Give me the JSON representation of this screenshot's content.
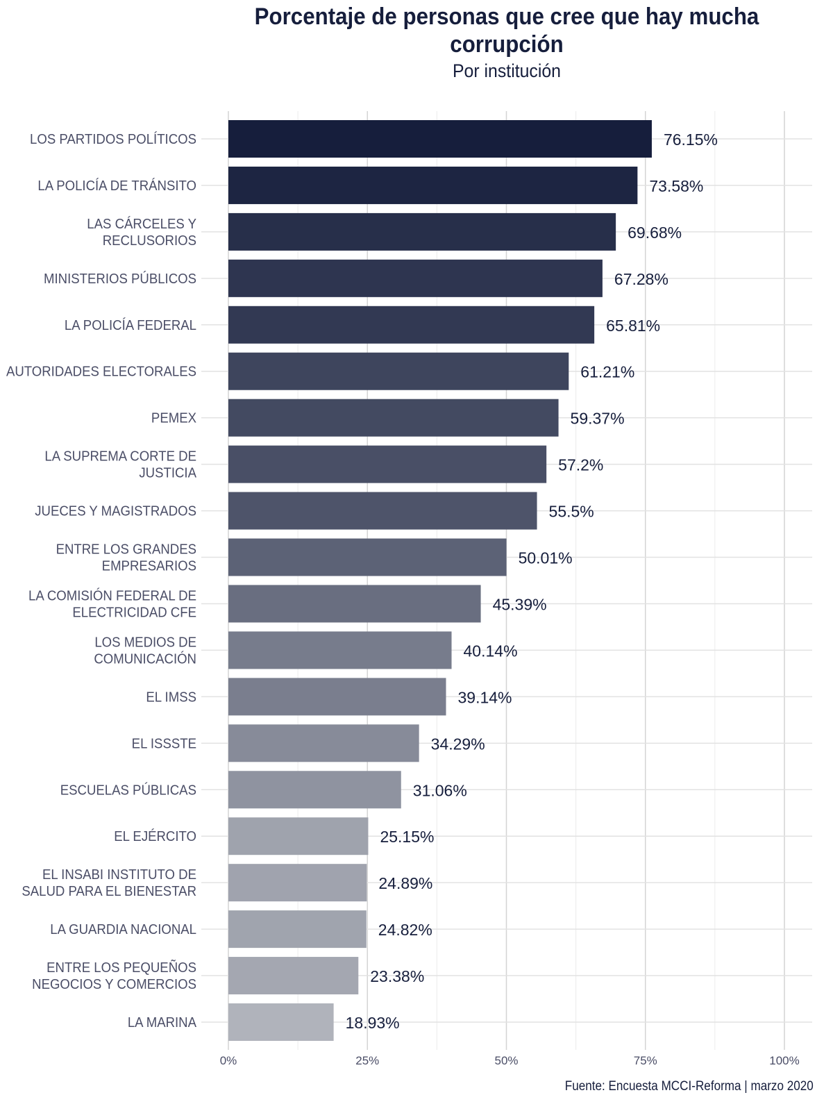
{
  "chart_data": {
    "type": "bar",
    "orientation": "horizontal",
    "title": "Porcentaje de personas que cree que hay mucha corrupción",
    "subtitle": "Por institución",
    "caption": "Fuente: Encuesta MCCI-Reforma | marzo 2020",
    "xlim": [
      0,
      100
    ],
    "xticks": [
      "0%",
      "25%",
      "50%",
      "75%",
      "100%"
    ],
    "xtick_values": [
      0,
      25,
      50,
      75,
      100
    ],
    "grid": true,
    "color_scale": {
      "high": "#161e3c",
      "low": "#b0b3bb"
    },
    "categories": [
      [
        "LOS PARTIDOS POLÍTICOS"
      ],
      [
        "LA POLICÍA DE TRÁNSITO"
      ],
      [
        "LAS CÁRCELES Y",
        "RECLUSORIOS"
      ],
      [
        "MINISTERIOS PÚBLICOS"
      ],
      [
        "LA POLICÍA FEDERAL"
      ],
      [
        "AUTORIDADES ELECTORALES"
      ],
      [
        "PEMEX"
      ],
      [
        "LA SUPREMA CORTE DE",
        "JUSTICIA"
      ],
      [
        "JUECES Y MAGISTRADOS"
      ],
      [
        "ENTRE LOS GRANDES",
        "EMPRESARIOS"
      ],
      [
        "LA COMISIÓN FEDERAL DE",
        "ELECTRICIDAD CFE"
      ],
      [
        "LOS MEDIOS DE",
        "COMUNICACIÓN"
      ],
      [
        "EL IMSS"
      ],
      [
        "EL ISSSTE"
      ],
      [
        "ESCUELAS PÚBLICAS"
      ],
      [
        "EL EJÉRCITO"
      ],
      [
        "EL INSABI INSTITUTO DE",
        "SALUD PARA EL BIENESTAR"
      ],
      [
        "LA GUARDIA NACIONAL"
      ],
      [
        "ENTRE LOS PEQUEÑOS",
        "NEGOCIOS Y COMERCIOS"
      ],
      [
        "LA MARINA"
      ]
    ],
    "values": [
      76.15,
      73.58,
      69.68,
      67.28,
      65.81,
      61.21,
      59.37,
      57.2,
      55.5,
      50.01,
      45.39,
      40.14,
      39.14,
      34.29,
      31.06,
      25.15,
      24.89,
      24.82,
      23.38,
      18.93
    ],
    "labels": [
      "76.15%",
      "73.58%",
      "69.68%",
      "67.28%",
      "65.81%",
      "61.21%",
      "59.37%",
      "57.2%",
      "55.5%",
      "50.01%",
      "45.39%",
      "40.14%",
      "39.14%",
      "34.29%",
      "31.06%",
      "25.15%",
      "24.89%",
      "24.82%",
      "23.38%",
      "18.93%"
    ]
  }
}
